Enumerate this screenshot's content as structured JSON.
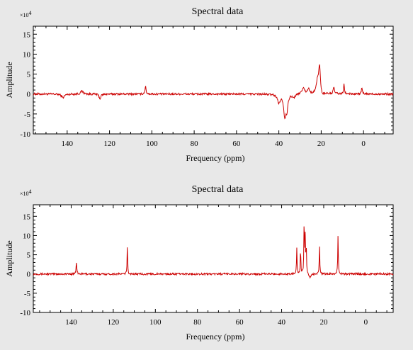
{
  "chart_data": [
    {
      "type": "line",
      "title": "Spectral data",
      "xlabel": "Frequency (ppm)",
      "ylabel": "Amplitude",
      "y_multiplier": "×10",
      "y_multiplier_exp": "4",
      "xlim": [
        156,
        -14
      ],
      "ylim": [
        -10,
        17
      ],
      "x_reversed": true,
      "x_ticks": [
        140,
        120,
        100,
        80,
        60,
        40,
        20,
        0
      ],
      "y_ticks": [
        -10,
        -5,
        0,
        5,
        10,
        15
      ],
      "grid": false,
      "line_color": "#cc0000",
      "baseline_noise": 0.25,
      "peaks": [
        {
          "x": 142.0,
          "h": -0.9,
          "w": 0.8
        },
        {
          "x": 133.0,
          "h": 0.8,
          "w": 0.6
        },
        {
          "x": 124.5,
          "h": -1.2,
          "w": 0.5
        },
        {
          "x": 103.0,
          "h": 1.9,
          "w": 0.3
        },
        {
          "x": 40.0,
          "h": -2.0,
          "w": 0.8
        },
        {
          "x": 37.2,
          "h": -5.4,
          "w": 0.6
        },
        {
          "x": 36.2,
          "h": -3.5,
          "w": 0.5
        },
        {
          "x": 33.0,
          "h": -0.8,
          "w": 0.8
        },
        {
          "x": 28.5,
          "h": 1.5,
          "w": 0.8
        },
        {
          "x": 26.0,
          "h": 1.2,
          "w": 0.6
        },
        {
          "x": 21.8,
          "h": 3.0,
          "w": 0.6
        },
        {
          "x": 20.8,
          "h": 6.8,
          "w": 0.5
        },
        {
          "x": 19.5,
          "h": -0.8,
          "w": 0.6
        },
        {
          "x": 14.0,
          "h": 1.5,
          "w": 0.4
        },
        {
          "x": 9.2,
          "h": 2.4,
          "w": 0.25
        },
        {
          "x": 0.8,
          "h": 1.6,
          "w": 0.25
        }
      ]
    },
    {
      "type": "line",
      "title": "Spectral data",
      "xlabel": "Frequency (ppm)",
      "ylabel": "Amplitude",
      "y_multiplier": "×10",
      "y_multiplier_exp": "4",
      "xlim": [
        158,
        -13
      ],
      "ylim": [
        -10,
        18
      ],
      "x_reversed": true,
      "x_ticks": [
        140,
        120,
        100,
        80,
        60,
        40,
        20,
        0
      ],
      "y_ticks": [
        -10,
        -5,
        0,
        5,
        10,
        15
      ],
      "grid": false,
      "line_color": "#cc0000",
      "baseline_noise": 0.25,
      "peaks": [
        {
          "x": 137.5,
          "h": 3.0,
          "w": 0.2
        },
        {
          "x": 113.3,
          "h": 7.5,
          "w": 0.15
        },
        {
          "x": 32.8,
          "h": 6.8,
          "w": 0.15
        },
        {
          "x": 31.0,
          "h": 6.8,
          "w": 0.15
        },
        {
          "x": 29.3,
          "h": 14.0,
          "w": 0.15
        },
        {
          "x": 28.8,
          "h": 9.5,
          "w": 0.15
        },
        {
          "x": 28.3,
          "h": 7.0,
          "w": 0.15
        },
        {
          "x": 22.0,
          "h": 7.5,
          "w": 0.15
        },
        {
          "x": 13.2,
          "h": 9.9,
          "w": 0.15
        },
        {
          "x": 26.5,
          "h": -1.0,
          "w": 0.6
        }
      ]
    }
  ]
}
